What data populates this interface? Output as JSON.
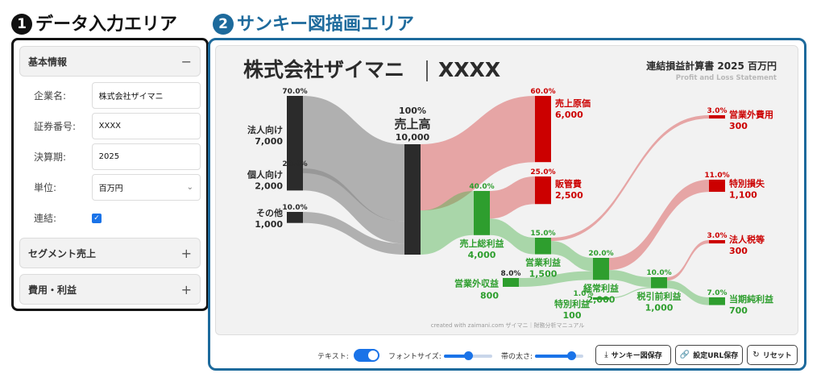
{
  "headings": {
    "input_num": "1",
    "input_title": "データ入力エリア",
    "sankey_num": "2",
    "sankey_title": "サンキー図描画エリア"
  },
  "input_panel": {
    "basic": {
      "title": "基本情報",
      "toggle": "−",
      "fields": {
        "company_label": "企業名:",
        "company_value": "株式会社ザイマニ",
        "code_label": "証券番号:",
        "code_value": "XXXX",
        "period_label": "決算期:",
        "period_value": "2025",
        "unit_label": "単位:",
        "unit_value": "百万円",
        "consolidated_label": "連結:",
        "consolidated_checked": true
      }
    },
    "segment": {
      "title": "セグメント売上",
      "toggle": "+"
    },
    "costs": {
      "title": "費用・利益",
      "toggle": "+"
    }
  },
  "chart": {
    "company_title": "株式会社ザイマニ",
    "code": "XXXX",
    "statement_title": "連結損益計算書 2025 百万円",
    "statement_subtitle": "Profit and Loss Statement",
    "footer": "created with zaimani.com ザイマニ｜財務分析マニュアル"
  },
  "chart_data": {
    "type": "sankey",
    "unit": "百万円",
    "nodes": [
      {
        "id": "corp",
        "label": "法人向け",
        "value": 7000,
        "value_label": "7,000",
        "pct_label": "70.0%",
        "color": "#2b2b2b"
      },
      {
        "id": "indiv",
        "label": "個人向け",
        "value": 2000,
        "value_label": "2,000",
        "pct_label": "20.0%",
        "color": "#2b2b2b"
      },
      {
        "id": "other",
        "label": "その他",
        "value": 1000,
        "value_label": "1,000",
        "pct_label": "10.0%",
        "color": "#2b2b2b"
      },
      {
        "id": "revenue",
        "label": "売上高",
        "value": 10000,
        "value_label": "10,000",
        "pct_label": "100%",
        "color": "#2b2b2b"
      },
      {
        "id": "cogs",
        "label": "売上原価",
        "value": 6000,
        "value_label": "6,000",
        "pct_label": "60.0%",
        "color": "#cc0000"
      },
      {
        "id": "gross",
        "label": "売上総利益",
        "value": 4000,
        "value_label": "4,000",
        "pct_label": "40.0%",
        "color": "#2e9e2e"
      },
      {
        "id": "sga",
        "label": "販管費",
        "value": 2500,
        "value_label": "2,500",
        "pct_label": "25.0%",
        "color": "#cc0000"
      },
      {
        "id": "op",
        "label": "営業利益",
        "value": 1500,
        "value_label": "1,500",
        "pct_label": "15.0%",
        "color": "#2e9e2e"
      },
      {
        "id": "nonop_inc",
        "label": "営業外収益",
        "value": 800,
        "value_label": "800",
        "pct_label": "8.0%",
        "color": "#2e9e2e"
      },
      {
        "id": "nonop_exp",
        "label": "営業外費用",
        "value": 300,
        "value_label": "300",
        "pct_label": "3.0%",
        "color": "#cc0000"
      },
      {
        "id": "ordinary",
        "label": "経常利益",
        "value": 2000,
        "value_label": "2,000",
        "pct_label": "20.0%",
        "color": "#2e9e2e"
      },
      {
        "id": "extra_gain",
        "label": "特別利益",
        "value": 100,
        "value_label": "100",
        "pct_label": "1.0%",
        "color": "#2e9e2e"
      },
      {
        "id": "extra_loss",
        "label": "特別損失",
        "value": 1100,
        "value_label": "1,100",
        "pct_label": "11.0%",
        "color": "#cc0000"
      },
      {
        "id": "pretax",
        "label": "税引前利益",
        "value": 1000,
        "value_label": "1,000",
        "pct_label": "10.0%",
        "color": "#2e9e2e"
      },
      {
        "id": "tax",
        "label": "法人税等",
        "value": 300,
        "value_label": "300",
        "pct_label": "3.0%",
        "color": "#cc0000"
      },
      {
        "id": "net",
        "label": "当期純利益",
        "value": 700,
        "value_label": "700",
        "pct_label": "7.0%",
        "color": "#2e9e2e"
      }
    ],
    "links": [
      {
        "source": "corp",
        "target": "revenue",
        "value": 7000
      },
      {
        "source": "indiv",
        "target": "revenue",
        "value": 2000
      },
      {
        "source": "other",
        "target": "revenue",
        "value": 1000
      },
      {
        "source": "revenue",
        "target": "cogs",
        "value": 6000
      },
      {
        "source": "revenue",
        "target": "gross",
        "value": 4000
      },
      {
        "source": "gross",
        "target": "sga",
        "value": 2500
      },
      {
        "source": "gross",
        "target": "op",
        "value": 1500
      },
      {
        "source": "op",
        "target": "nonop_exp",
        "value": 300
      },
      {
        "source": "op",
        "target": "ordinary",
        "value": 1200
      },
      {
        "source": "nonop_inc",
        "target": "ordinary",
        "value": 800
      },
      {
        "source": "ordinary",
        "target": "extra_loss",
        "value": 1100
      },
      {
        "source": "ordinary",
        "target": "pretax",
        "value": 900
      },
      {
        "source": "extra_gain",
        "target": "pretax",
        "value": 100
      },
      {
        "source": "pretax",
        "target": "tax",
        "value": 300
      },
      {
        "source": "pretax",
        "target": "net",
        "value": 700
      }
    ]
  },
  "controls": {
    "text_label": "テキスト:",
    "text_on": true,
    "font_size_label": "フォントサイズ:",
    "font_size_level": 0.5,
    "band_label": "帯の太さ:",
    "band_level": 0.75,
    "save_image_label": "サンキー図保存",
    "save_url_label": "設定URL保存",
    "reset_label": "リセット",
    "save_image_icon": "download-icon",
    "save_url_icon": "link-icon",
    "reset_icon": "refresh-icon"
  }
}
